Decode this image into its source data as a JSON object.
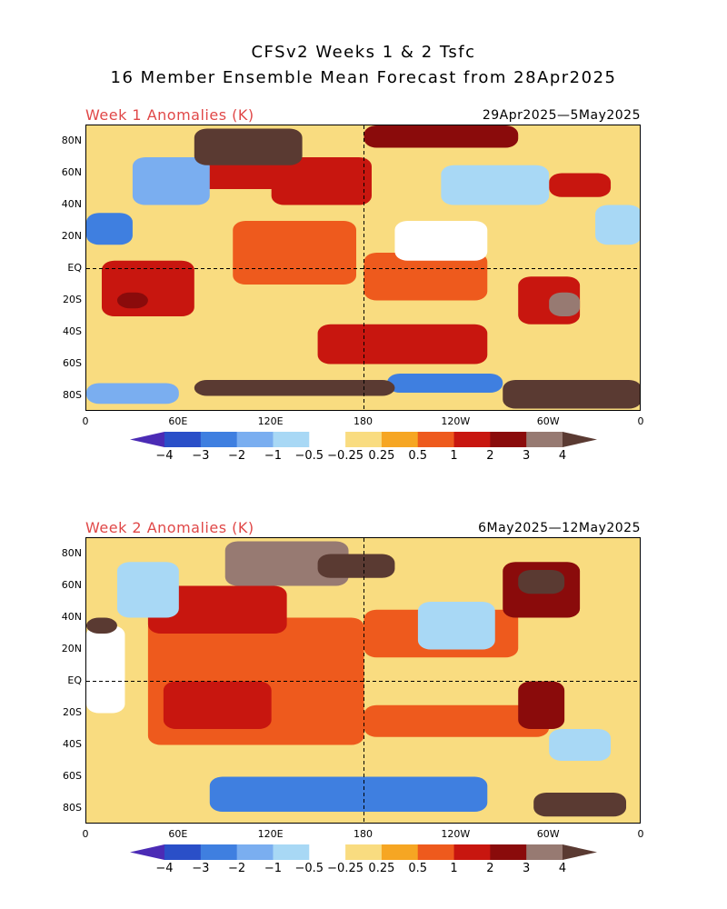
{
  "title": {
    "line1": "CFSv2 Weeks 1 & 2 Tsfc",
    "line2": "16 Member Ensemble Mean Forecast from 28Apr2025"
  },
  "panels": [
    {
      "label": "Week 1 Anomalies (K)",
      "dates": "29Apr2025—5May2025"
    },
    {
      "label": "Week 2 Anomalies (K)",
      "dates": "6May2025—12May2025"
    }
  ],
  "lat_labels": [
    "80N",
    "60N",
    "40N",
    "20N",
    "EQ",
    "20S",
    "40S",
    "60S",
    "80S"
  ],
  "lon_labels": [
    "0",
    "60E",
    "120E",
    "180",
    "120W",
    "60W",
    "0"
  ],
  "colorbar": {
    "labels": [
      "−4",
      "−3",
      "−2",
      "−1",
      "−0.5",
      "−0.25",
      "0.25",
      "0.5",
      "1",
      "2",
      "3",
      "4"
    ],
    "colors": [
      "#4b2bb5",
      "#2a4fc8",
      "#3f7fe0",
      "#7aaef0",
      "#a8d8f5",
      "#ffffff",
      "#f9dc80",
      "#f6a623",
      "#ee5a1d",
      "#c8160f",
      "#8a0b0b",
      "#977a72",
      "#5a3a32"
    ]
  },
  "chart_data": [
    {
      "type": "heatmap",
      "title": "Week 1 Anomalies (K)",
      "period": "29Apr2025—5May2025",
      "xlabel": "",
      "ylabel": "",
      "x_ticks": [
        "0",
        "60E",
        "120E",
        "180",
        "120W",
        "60W",
        "0"
      ],
      "y_ticks": [
        "80N",
        "60N",
        "40N",
        "20N",
        "EQ",
        "20S",
        "40S",
        "60S",
        "80S"
      ],
      "contour_levels": [
        -4,
        -3,
        -2,
        -1,
        -0.5,
        -0.25,
        0.25,
        0.5,
        1,
        2,
        3,
        4
      ],
      "regions": [
        {
          "lon": [
            0,
            360
          ],
          "lat": [
            -90,
            90
          ],
          "level": 0
        },
        {
          "lon": [
            95,
            175
          ],
          "lat": [
            -10,
            30
          ],
          "level": 0.5
        },
        {
          "lon": [
            180,
            260
          ],
          "lat": [
            -20,
            10
          ],
          "level": 0.5
        },
        {
          "lon": [
            70,
            140
          ],
          "lat": [
            50,
            75
          ],
          "level": 1
        },
        {
          "lon": [
            120,
            185
          ],
          "lat": [
            40,
            70
          ],
          "level": 1
        },
        {
          "lon": [
            10,
            70
          ],
          "lat": [
            -30,
            5
          ],
          "level": 1
        },
        {
          "lon": [
            150,
            260
          ],
          "lat": [
            -60,
            -35
          ],
          "level": 1
        },
        {
          "lon": [
            280,
            320
          ],
          "lat": [
            -35,
            -5
          ],
          "level": 1
        },
        {
          "lon": [
            300,
            340
          ],
          "lat": [
            45,
            60
          ],
          "level": 1
        },
        {
          "lon": [
            30,
            80
          ],
          "lat": [
            40,
            70
          ],
          "level": -2
        },
        {
          "lon": [
            230,
            300
          ],
          "lat": [
            40,
            65
          ],
          "level": -1
        },
        {
          "lon": [
            330,
            360
          ],
          "lat": [
            15,
            40
          ],
          "level": -1
        },
        {
          "lon": [
            200,
            260
          ],
          "lat": [
            5,
            30
          ],
          "level": -0.5
        },
        {
          "lon": [
            0,
            30
          ],
          "lat": [
            15,
            35
          ],
          "level": -3
        },
        {
          "lon": [
            195,
            270
          ],
          "lat": [
            -78,
            -66
          ],
          "level": -3
        },
        {
          "lon": [
            0,
            60
          ],
          "lat": [
            -85,
            -72
          ],
          "level": -2
        },
        {
          "lon": [
            70,
            200
          ],
          "lat": [
            -80,
            -70
          ],
          "level": 4
        },
        {
          "lon": [
            270,
            360
          ],
          "lat": [
            -88,
            -70
          ],
          "level": 4
        },
        {
          "lon": [
            70,
            140
          ],
          "lat": [
            65,
            88
          ],
          "level": 4
        },
        {
          "lon": [
            180,
            280
          ],
          "lat": [
            76,
            90
          ],
          "level": 2
        },
        {
          "lon": [
            300,
            320
          ],
          "lat": [
            -30,
            -15
          ],
          "level": 3
        },
        {
          "lon": [
            20,
            40
          ],
          "lat": [
            -25,
            -15
          ],
          "level": 2
        }
      ]
    },
    {
      "type": "heatmap",
      "title": "Week 2 Anomalies (K)",
      "period": "6May2025—12May2025",
      "xlabel": "",
      "ylabel": "",
      "x_ticks": [
        "0",
        "60E",
        "120E",
        "180",
        "120W",
        "60W",
        "0"
      ],
      "y_ticks": [
        "80N",
        "60N",
        "40N",
        "20N",
        "EQ",
        "20S",
        "40S",
        "60S",
        "80S"
      ],
      "contour_levels": [
        -4,
        -3,
        -2,
        -1,
        -0.5,
        -0.25,
        0.25,
        0.5,
        1,
        2,
        3,
        4
      ],
      "regions": [
        {
          "lon": [
            0,
            360
          ],
          "lat": [
            -90,
            90
          ],
          "level": 0
        },
        {
          "lon": [
            40,
            180
          ],
          "lat": [
            -40,
            40
          ],
          "level": 0.5
        },
        {
          "lon": [
            180,
            280
          ],
          "lat": [
            15,
            45
          ],
          "level": 0.5
        },
        {
          "lon": [
            180,
            300
          ],
          "lat": [
            -35,
            -15
          ],
          "level": 0.5
        },
        {
          "lon": [
            50,
            120
          ],
          "lat": [
            -30,
            0
          ],
          "level": 1
        },
        {
          "lon": [
            40,
            130
          ],
          "lat": [
            30,
            60
          ],
          "level": 1
        },
        {
          "lon": [
            280,
            310
          ],
          "lat": [
            -30,
            0
          ],
          "level": 2
        },
        {
          "lon": [
            270,
            320
          ],
          "lat": [
            40,
            75
          ],
          "level": 2
        },
        {
          "lon": [
            20,
            60
          ],
          "lat": [
            40,
            75
          ],
          "level": -1
        },
        {
          "lon": [
            215,
            265
          ],
          "lat": [
            20,
            50
          ],
          "level": -1
        },
        {
          "lon": [
            300,
            340
          ],
          "lat": [
            -50,
            -30
          ],
          "level": -1
        },
        {
          "lon": [
            0,
            25
          ],
          "lat": [
            -20,
            35
          ],
          "level": -0.5
        },
        {
          "lon": [
            80,
            260
          ],
          "lat": [
            -82,
            -60
          ],
          "level": -3
        },
        {
          "lon": [
            90,
            170
          ],
          "lat": [
            60,
            88
          ],
          "level": 3
        },
        {
          "lon": [
            150,
            200
          ],
          "lat": [
            65,
            80
          ],
          "level": 4
        },
        {
          "lon": [
            280,
            310
          ],
          "lat": [
            55,
            70
          ],
          "level": 4
        },
        {
          "lon": [
            290,
            350
          ],
          "lat": [
            -85,
            -70
          ],
          "level": 4
        },
        {
          "lon": [
            0,
            20
          ],
          "lat": [
            30,
            40
          ],
          "level": 4
        }
      ]
    }
  ]
}
